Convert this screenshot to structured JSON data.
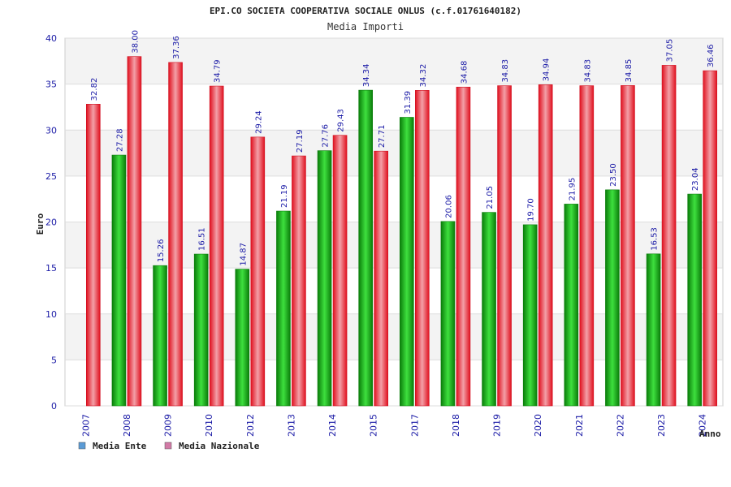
{
  "chart_data": {
    "type": "bar",
    "title": "EPI.CO SOCIETA COOPERATIVA SOCIALE ONLUS (c.f.01761640182)",
    "subtitle": "Media Importi",
    "xlabel": "Anno",
    "ylabel": "Euro",
    "ylim": [
      0,
      40
    ],
    "yticks": [
      0,
      5,
      10,
      15,
      20,
      25,
      30,
      35,
      40
    ],
    "grid": true,
    "legend_position": "bottom-left",
    "categories": [
      "2007",
      "2008",
      "2009",
      "2010",
      "2012",
      "2013",
      "2014",
      "2015",
      "2017",
      "2018",
      "2019",
      "2020",
      "2021",
      "2022",
      "2023",
      "2024"
    ],
    "series": [
      {
        "name": "Media Ente",
        "color": "#1fbf1f",
        "legend_color": "#5b9bd5",
        "values": [
          null,
          27.28,
          15.26,
          16.51,
          14.87,
          21.19,
          27.76,
          34.34,
          31.39,
          20.06,
          21.05,
          19.7,
          21.95,
          23.5,
          16.53,
          23.04
        ],
        "labels": [
          "",
          "27.28",
          "15.26",
          "16.51",
          "14.87",
          "21.19",
          "27.76",
          "34.34",
          "31.39",
          "20.06",
          "21.05",
          "19.70",
          "21.95",
          "23.50",
          "16.53",
          "23.04"
        ]
      },
      {
        "name": "Media Nazionale",
        "color": "#ee2b3b",
        "legend_color": "#d27aa6",
        "values": [
          32.82,
          38.0,
          37.36,
          34.79,
          29.24,
          27.19,
          29.43,
          27.71,
          34.32,
          34.68,
          34.83,
          34.94,
          34.83,
          34.85,
          37.05,
          36.46
        ],
        "labels": [
          "32.82",
          "38.00",
          "37.36",
          "34.79",
          "29.24",
          "27.19",
          "29.43",
          "27.71",
          "34.32",
          "34.68",
          "34.83",
          "34.94",
          "34.83",
          "34.85",
          "37.05",
          "36.46"
        ]
      }
    ]
  }
}
